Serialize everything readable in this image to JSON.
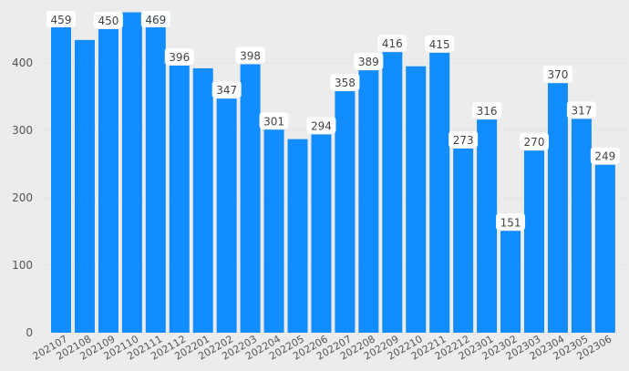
{
  "chart_data": {
    "type": "bar",
    "title": "",
    "xlabel": "",
    "ylabel": "",
    "color": "#118DFF",
    "ylim": [
      0,
      480
    ],
    "yticks": [
      0,
      100,
      200,
      300,
      400
    ],
    "grid": "horizontal dotted",
    "categories": [
      "202107",
      "202108",
      "202109",
      "202110",
      "202111",
      "202112",
      "202201",
      "202202",
      "202203",
      "202204",
      "202205",
      "202206",
      "202207",
      "202208",
      "202209",
      "202210",
      "202211",
      "202212",
      "202301",
      "202302",
      "202303",
      "202304",
      "202305",
      "202306"
    ],
    "values": [
      459,
      434,
      450,
      475,
      469,
      396,
      392,
      347,
      398,
      301,
      287,
      294,
      358,
      389,
      416,
      395,
      415,
      273,
      316,
      151,
      270,
      370,
      317,
      249
    ],
    "data_labels": [
      "459",
      null,
      "450",
      null,
      "469",
      "396",
      null,
      "347",
      "398",
      "301",
      null,
      "294",
      "358",
      "389",
      "416",
      null,
      "415",
      "273",
      "316",
      "151",
      "270",
      "370",
      "317",
      "249"
    ]
  }
}
